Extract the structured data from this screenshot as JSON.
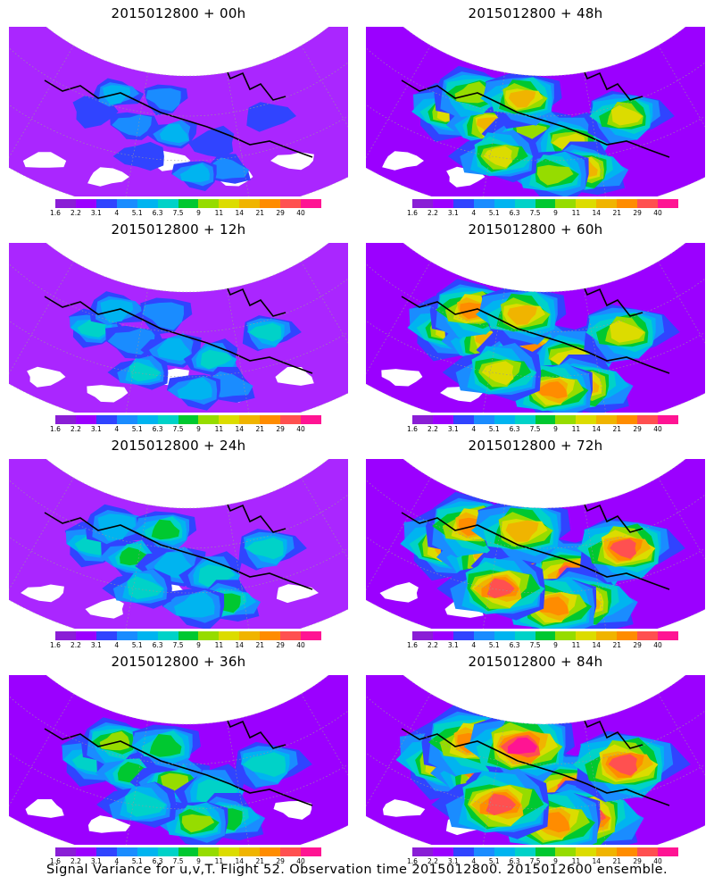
{
  "panels": [
    {
      "title": "2015012800 + 00h",
      "lead": 0
    },
    {
      "title": "2015012800 + 48h",
      "lead": 48
    },
    {
      "title": "2015012800 + 12h",
      "lead": 12
    },
    {
      "title": "2015012800 + 60h",
      "lead": 60
    },
    {
      "title": "2015012800 + 24h",
      "lead": 24
    },
    {
      "title": "2015012800 + 72h",
      "lead": 72
    },
    {
      "title": "2015012800 + 36h",
      "lead": 36
    },
    {
      "title": "2015012800 + 84h",
      "lead": 84
    }
  ],
  "colorbar": {
    "labels": [
      "1.6",
      "2.2",
      "3.1",
      "4",
      "5.1",
      "6.3",
      "7.5",
      "9",
      "11",
      "14",
      "21",
      "29",
      "40"
    ],
    "colors": [
      "#8a1ed6",
      "#9b00ff",
      "#3044ff",
      "#1a8cff",
      "#00b4f0",
      "#00d2c8",
      "#00c830",
      "#96dc00",
      "#dcdc00",
      "#f0b400",
      "#ff8c00",
      "#ff5050",
      "#ff1493"
    ]
  },
  "footer": "Signal Variance for u,v,T. Flight 52. Observation time 2015012800. 2015012600 ensemble."
}
